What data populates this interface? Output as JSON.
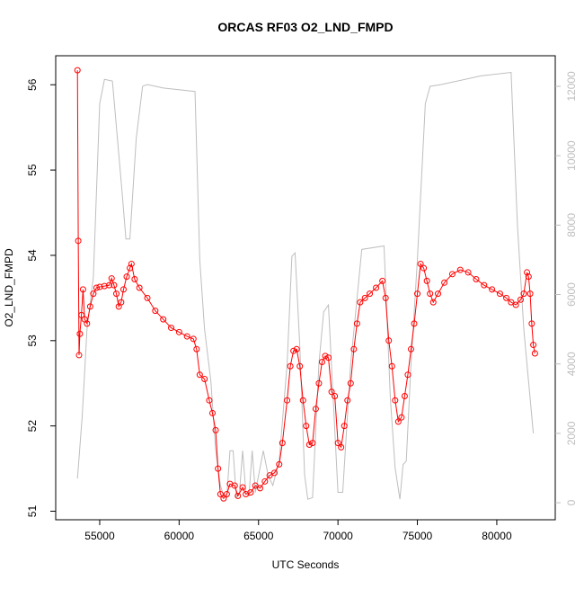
{
  "chart_data": {
    "type": "line",
    "title": "ORCAS RF03 O2_LND_FMPD",
    "xlabel": "UTC Seconds",
    "ylabel": "O2_LND_FMPD",
    "xlim": [
      52230,
      83680
    ],
    "xticks": [
      55000,
      60000,
      65000,
      70000,
      75000,
      80000
    ],
    "ylim": [
      50.9,
      56.34
    ],
    "yticks": [
      51,
      52,
      53,
      54,
      55,
      56
    ],
    "y2lim": [
      -490,
      12880
    ],
    "y2ticks": [
      0,
      2000,
      4000,
      6000,
      8000,
      10000,
      12000
    ],
    "y2color": "#bebebe",
    "series": [
      {
        "color": "#ff0000",
        "marker": "circle",
        "x": [
          53600,
          53650,
          53700,
          53750,
          53850,
          53950,
          54050,
          54200,
          54400,
          54600,
          54800,
          55000,
          55300,
          55600,
          55750,
          55900,
          56050,
          56200,
          56350,
          56500,
          56700,
          56900,
          57000,
          57200,
          57500,
          58000,
          58500,
          59000,
          59500,
          60000,
          60500,
          60900,
          61100,
          61300,
          61600,
          61900,
          62100,
          62300,
          62450,
          62600,
          62800,
          63000,
          63200,
          63500,
          63700,
          64000,
          64200,
          64500,
          64800,
          65100,
          65400,
          65700,
          66000,
          66300,
          66500,
          66800,
          67000,
          67200,
          67400,
          67600,
          67800,
          68000,
          68200,
          68400,
          68600,
          68800,
          69000,
          69200,
          69400,
          69600,
          69800,
          70000,
          70200,
          70400,
          70600,
          70800,
          71000,
          71200,
          71400,
          71700,
          72000,
          72400,
          72800,
          73000,
          73200,
          73400,
          73600,
          73800,
          74000,
          74200,
          74400,
          74600,
          74800,
          75000,
          75200,
          75400,
          75600,
          75800,
          76000,
          76300,
          76700,
          77200,
          77700,
          78200,
          78700,
          79200,
          79700,
          80200,
          80600,
          80900,
          81200,
          81500,
          81700,
          81900,
          82000,
          82100,
          82200,
          82300,
          82400
        ],
        "values": [
          56.17,
          54.17,
          52.83,
          53.08,
          53.3,
          53.6,
          53.25,
          53.2,
          53.4,
          53.55,
          53.62,
          53.63,
          53.64,
          53.65,
          53.73,
          53.65,
          53.55,
          53.4,
          53.45,
          53.6,
          53.75,
          53.85,
          53.9,
          53.72,
          53.62,
          53.5,
          53.35,
          53.25,
          53.15,
          53.1,
          53.05,
          53.02,
          52.9,
          52.6,
          52.55,
          52.3,
          52.15,
          51.95,
          51.5,
          51.2,
          51.15,
          51.2,
          51.32,
          51.3,
          51.18,
          51.28,
          51.2,
          51.22,
          51.3,
          51.27,
          51.35,
          51.42,
          51.45,
          51.55,
          51.8,
          52.3,
          52.7,
          52.88,
          52.9,
          52.7,
          52.3,
          52.0,
          51.78,
          51.8,
          52.2,
          52.5,
          52.75,
          52.82,
          52.8,
          52.4,
          52.35,
          51.8,
          51.75,
          52.0,
          52.3,
          52.5,
          52.9,
          53.2,
          53.45,
          53.5,
          53.55,
          53.62,
          53.7,
          53.5,
          53.0,
          52.7,
          52.3,
          52.05,
          52.1,
          52.35,
          52.6,
          52.9,
          53.2,
          53.55,
          53.9,
          53.85,
          53.7,
          53.55,
          53.45,
          53.55,
          53.68,
          53.78,
          53.83,
          53.8,
          53.72,
          53.65,
          53.6,
          53.55,
          53.5,
          53.45,
          53.42,
          53.48,
          53.55,
          53.8,
          53.75,
          53.55,
          53.2,
          52.95,
          52.85
        ]
      },
      {
        "color": "#bebebe",
        "axis": "y2",
        "x": [
          53600,
          53900,
          54200,
          54600,
          55000,
          55300,
          55800,
          56400,
          56650,
          56900,
          57300,
          57700,
          58000,
          59000,
          61000,
          61300,
          61600,
          62000,
          62300,
          62600,
          62800,
          63000,
          63200,
          63400,
          63600,
          63800,
          64000,
          64200,
          64400,
          64600,
          64800,
          65300,
          65600,
          65900,
          66300,
          66800,
          67100,
          67300,
          67600,
          67900,
          68100,
          68400,
          68800,
          69100,
          69400,
          69700,
          70000,
          70300,
          70800,
          71500,
          72900,
          73300,
          73600,
          73900,
          74100,
          74300,
          74600,
          75000,
          75500,
          75800,
          76500,
          79000,
          80900,
          81300,
          81700,
          82300
        ],
        "values": [
          700,
          2500,
          5000,
          6500,
          11500,
          12200,
          12150,
          9000,
          7600,
          7600,
          10500,
          12000,
          12050,
          11950,
          11850,
          7000,
          5000,
          3500,
          1500,
          500,
          200,
          150,
          1500,
          1500,
          150,
          300,
          1500,
          300,
          200,
          1500,
          300,
          1500,
          800,
          500,
          1200,
          4000,
          7100,
          7200,
          4500,
          800,
          100,
          150,
          4000,
          5500,
          5700,
          3000,
          300,
          300,
          4000,
          7300,
          7400,
          3000,
          1000,
          100,
          1100,
          1200,
          4000,
          7000,
          11500,
          12000,
          12050,
          12300,
          12400,
          8000,
          5000,
          2000
        ]
      }
    ]
  }
}
